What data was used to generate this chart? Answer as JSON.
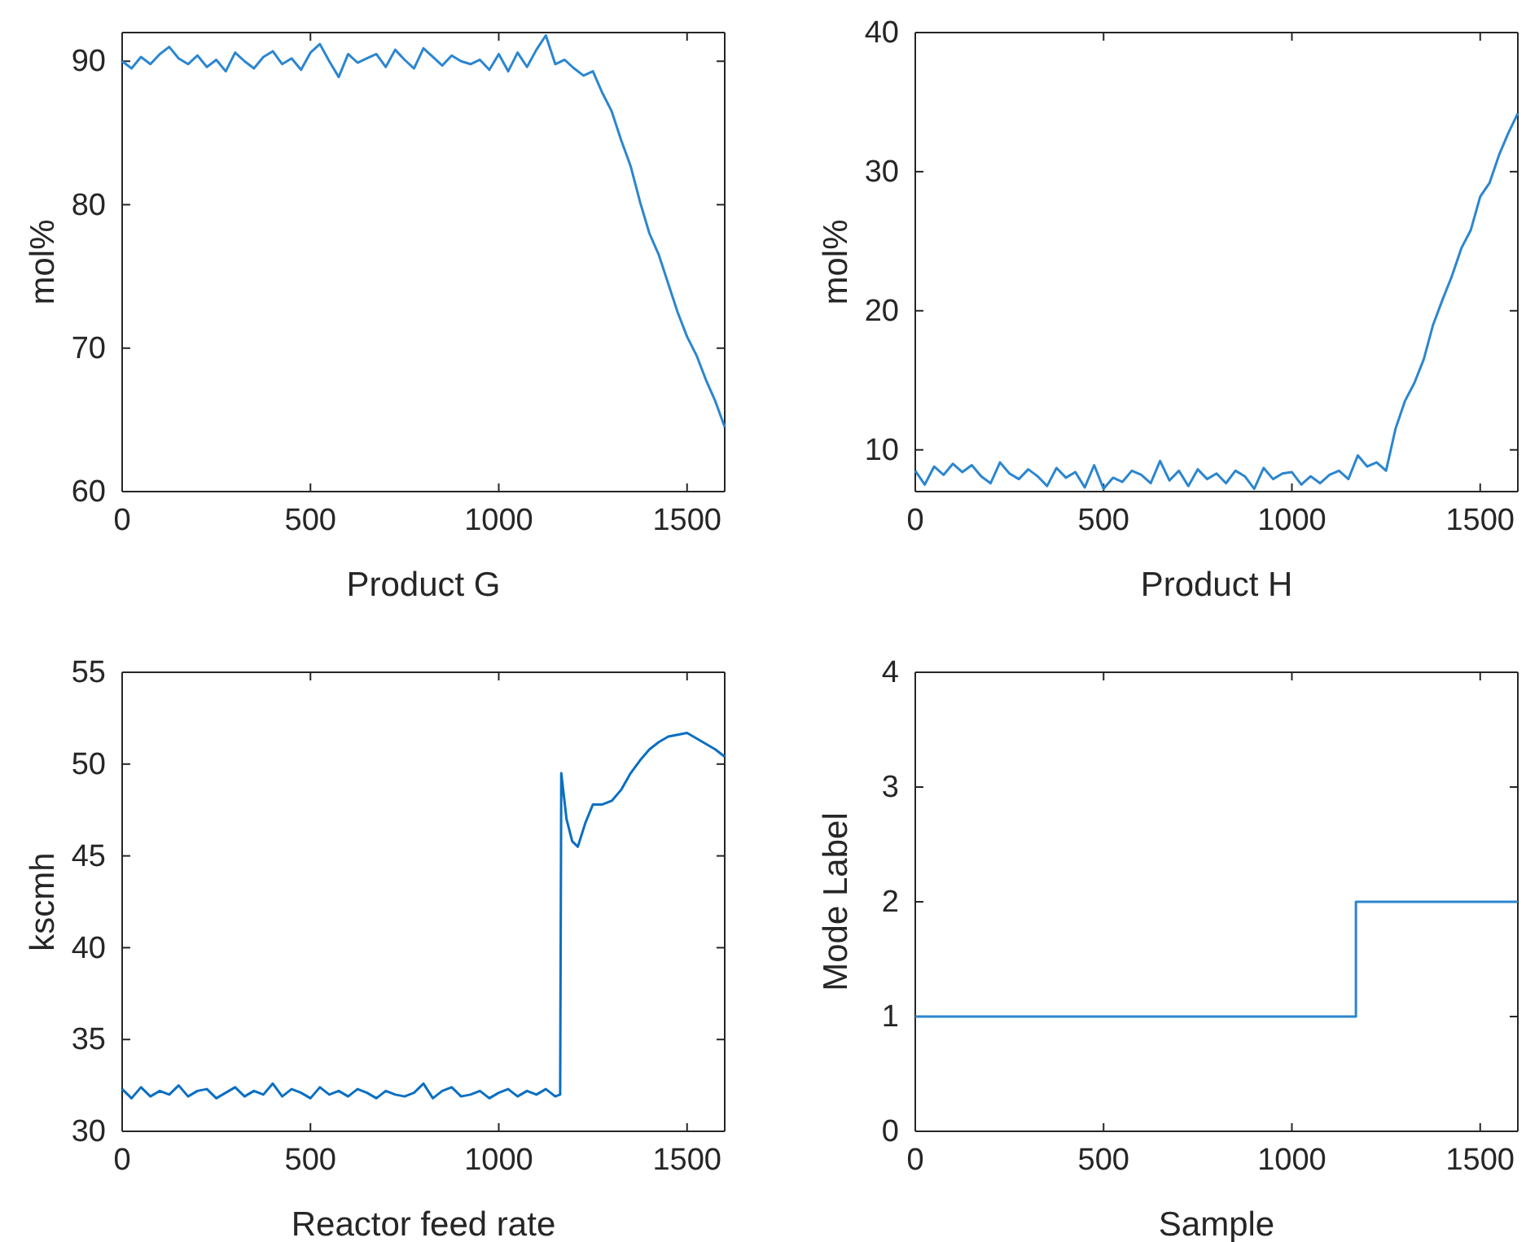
{
  "chart_data": [
    {
      "type": "line",
      "xlabel": "Product G",
      "ylabel": "mol%",
      "xlim": [
        0,
        1600
      ],
      "ylim": [
        60,
        92
      ],
      "xticks": [
        0,
        500,
        1000,
        1500
      ],
      "yticks": [
        60,
        70,
        80,
        90
      ],
      "series": [
        {
          "color": "#2b86d0",
          "x": [
            0,
            25,
            50,
            75,
            100,
            125,
            150,
            175,
            200,
            225,
            250,
            275,
            300,
            325,
            350,
            375,
            400,
            425,
            450,
            475,
            500,
            525,
            550,
            575,
            600,
            625,
            650,
            675,
            700,
            725,
            750,
            775,
            800,
            825,
            850,
            875,
            900,
            925,
            950,
            975,
            1000,
            1025,
            1050,
            1075,
            1100,
            1125,
            1150,
            1175,
            1200,
            1225,
            1250,
            1275,
            1300,
            1325,
            1350,
            1375,
            1400,
            1425,
            1450,
            1475,
            1500,
            1525,
            1550,
            1575,
            1600
          ],
          "values": [
            90,
            89.5,
            90.3,
            89.8,
            90.5,
            91,
            90.2,
            89.8,
            90.4,
            89.6,
            90.1,
            89.3,
            90.6,
            90,
            89.5,
            90.3,
            90.7,
            89.8,
            90.2,
            89.4,
            90.6,
            91.2,
            90,
            88.9,
            90.5,
            89.9,
            90.2,
            90.5,
            89.6,
            90.8,
            90.1,
            89.5,
            90.9,
            90.3,
            89.7,
            90.4,
            90,
            89.8,
            90.1,
            89.4,
            90.5,
            89.3,
            90.6,
            89.6,
            90.8,
            91.8,
            89.8,
            90.1,
            89.5,
            89,
            89.3,
            87.8,
            86.5,
            84.5,
            82.7,
            80.2,
            78,
            76.5,
            74.5,
            72.5,
            70.8,
            69.5,
            67.8,
            66.3,
            64.5
          ]
        }
      ]
    },
    {
      "type": "line",
      "xlabel": "Product H",
      "ylabel": "mol%",
      "xlim": [
        0,
        1600
      ],
      "ylim": [
        7,
        40
      ],
      "xticks": [
        0,
        500,
        1000,
        1500
      ],
      "yticks": [
        10,
        20,
        30,
        40
      ],
      "series": [
        {
          "color": "#2b86d0",
          "x": [
            0,
            25,
            50,
            75,
            100,
            125,
            150,
            175,
            200,
            225,
            250,
            275,
            300,
            325,
            350,
            375,
            400,
            425,
            450,
            475,
            500,
            525,
            550,
            575,
            600,
            625,
            650,
            675,
            700,
            725,
            750,
            775,
            800,
            825,
            850,
            875,
            900,
            925,
            950,
            975,
            1000,
            1025,
            1050,
            1075,
            1100,
            1125,
            1150,
            1175,
            1200,
            1225,
            1250,
            1275,
            1300,
            1325,
            1350,
            1375,
            1400,
            1425,
            1450,
            1475,
            1500,
            1525,
            1550,
            1575,
            1600
          ],
          "values": [
            8.5,
            7.5,
            8.8,
            8.2,
            9,
            8.4,
            8.9,
            8.1,
            7.6,
            9.1,
            8.3,
            7.9,
            8.6,
            8.1,
            7.4,
            8.7,
            8,
            8.4,
            7.3,
            8.9,
            7.2,
            8,
            7.7,
            8.5,
            8.2,
            7.6,
            9.2,
            7.8,
            8.5,
            7.4,
            8.6,
            7.9,
            8.3,
            7.6,
            8.5,
            8.1,
            7.2,
            8.7,
            7.9,
            8.3,
            8.4,
            7.5,
            8.1,
            7.6,
            8.2,
            8.5,
            7.9,
            9.6,
            8.8,
            9.1,
            8.5,
            11.5,
            13.5,
            14.8,
            16.5,
            19,
            20.8,
            22.5,
            24.5,
            25.8,
            28.2,
            29.2,
            31.2,
            32.8,
            34.2
          ]
        }
      ]
    },
    {
      "type": "line",
      "xlabel": "Reactor feed rate",
      "ylabel": "kscmh",
      "xlim": [
        0,
        1600
      ],
      "ylim": [
        30,
        55
      ],
      "xticks": [
        0,
        500,
        1000,
        1500
      ],
      "yticks": [
        30,
        35,
        40,
        45,
        50,
        55
      ],
      "series": [
        {
          "color": "#0a6fc2",
          "x": [
            0,
            25,
            50,
            75,
            100,
            125,
            150,
            175,
            200,
            225,
            250,
            275,
            300,
            325,
            350,
            375,
            400,
            425,
            450,
            475,
            500,
            525,
            550,
            575,
            600,
            625,
            650,
            675,
            700,
            725,
            750,
            775,
            800,
            825,
            850,
            875,
            900,
            925,
            950,
            975,
            1000,
            1025,
            1050,
            1075,
            1100,
            1125,
            1150,
            1163,
            1166,
            1180,
            1195,
            1210,
            1230,
            1250,
            1275,
            1300,
            1325,
            1350,
            1375,
            1400,
            1425,
            1450,
            1475,
            1500,
            1525,
            1550,
            1575,
            1600
          ],
          "values": [
            32.3,
            31.8,
            32.4,
            31.9,
            32.2,
            32,
            32.5,
            31.9,
            32.2,
            32.3,
            31.8,
            32.1,
            32.4,
            31.9,
            32.2,
            32,
            32.6,
            31.9,
            32.3,
            32.1,
            31.8,
            32.4,
            32,
            32.2,
            31.9,
            32.3,
            32.1,
            31.8,
            32.2,
            32,
            31.9,
            32.1,
            32.6,
            31.8,
            32.2,
            32.4,
            31.9,
            32,
            32.2,
            31.8,
            32.1,
            32.3,
            31.9,
            32.2,
            32,
            32.3,
            31.9,
            32,
            49.5,
            47,
            45.8,
            45.5,
            46.8,
            47.8,
            47.8,
            48,
            48.6,
            49.5,
            50.2,
            50.8,
            51.2,
            51.5,
            51.6,
            51.7,
            51.4,
            51.1,
            50.8,
            50.4
          ]
        }
      ]
    },
    {
      "type": "step",
      "xlabel": "Sample",
      "ylabel": "Mode Label",
      "xlim": [
        0,
        1600
      ],
      "ylim": [
        0,
        4
      ],
      "xticks": [
        0,
        500,
        1000,
        1500
      ],
      "yticks": [
        0,
        1,
        2,
        3,
        4
      ],
      "series": [
        {
          "color": "#2b86d0",
          "x": [
            0,
            1170,
            1600
          ],
          "values": [
            1,
            2,
            2
          ]
        }
      ]
    }
  ]
}
